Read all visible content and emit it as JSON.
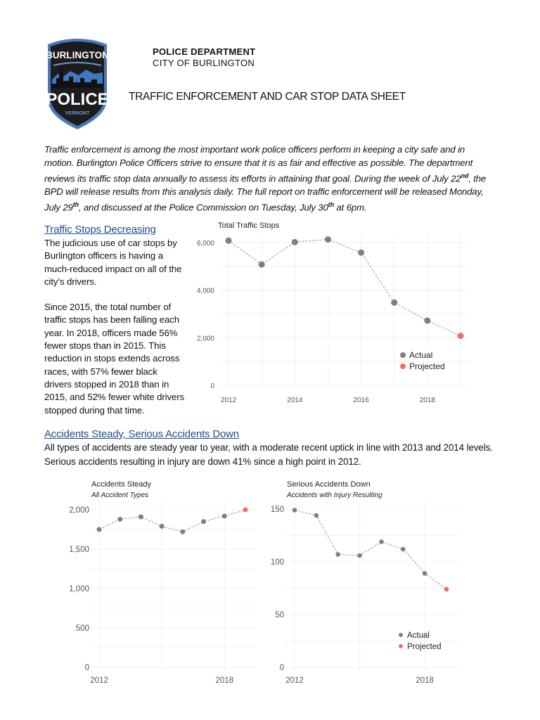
{
  "logo": {
    "top_text": "BURLINGTON",
    "main_text": "POLICE",
    "bottom_text": "VERMONT"
  },
  "header": {
    "department": "POLICE DEPARTMENT",
    "city": "CITY OF BURLINGTON",
    "title": "TRAFFIC ENFORCEMENT AND CAR STOP DATA SHEET"
  },
  "intro": {
    "p1": "Traffic enforcement is among the most important work police officers perform in keeping a city safe and in motion. Burlington Police Officers strive to ensure that it is as fair and effective as possible. The department reviews its traffic stop data annually to assess its efforts in attaining that goal. During the week of July 22",
    "sup1": "nd",
    "p2": ", the BPD will release results from this analysis daily. The full report on traffic enforcement will be released Monday, July 29",
    "sup2": "th",
    "p3": ", and discussed at the Police Commission on Tuesday, July 30",
    "sup3": "th",
    "p4": " at 6pm."
  },
  "section1": {
    "heading": "Traffic Stops Decreasing",
    "para1": "The judicious use of car stops by Burlington officers is having a much-reduced impact on all of the city’s drivers.",
    "para2": "Since 2015, the total number of traffic stops has been falling each year. In 2018, officers made 56% fewer stops than in 2015. This reduction in stops extends across races, with 57% fewer black drivers stopped in 2018 than in 2015, and 52% fewer white drivers stopped during that time."
  },
  "section2": {
    "heading": "Accidents Steady, Serious Accidents Down",
    "para": "All types of accidents are steady year to year, with a moderate recent uptick in line with 2013 and 2014 levels. Serious accidents resulting in injury are down 41% since a high point in 2012."
  },
  "colors": {
    "actual": "#7f7f7f",
    "projected": "#f26b6b",
    "heading": "#1f4e8c"
  },
  "chart_data": [
    {
      "type": "line",
      "title": "Total Traffic Stops",
      "x": [
        2012,
        2013,
        2014,
        2015,
        2016,
        2017,
        2018,
        2019
      ],
      "y": [
        6080,
        5080,
        6020,
        6130,
        5580,
        3480,
        2720,
        2080
      ],
      "status": [
        "Actual",
        "Actual",
        "Actual",
        "Actual",
        "Actual",
        "Actual",
        "Actual",
        "Projected"
      ],
      "xticks": [
        "2012",
        "2014",
        "2016",
        "2018"
      ],
      "yticks": [
        "0",
        "2,000",
        "4,000",
        "6,000"
      ],
      "ylim": [
        0,
        6300
      ],
      "legend": [
        "Actual",
        "Projected"
      ],
      "legend_position": "bottom-right",
      "grid": true,
      "line_style": "dashed"
    },
    {
      "type": "line",
      "title": "Accidents Steady",
      "subtitle": "All Accident Types",
      "x": [
        2012,
        2013,
        2014,
        2015,
        2016,
        2017,
        2018,
        2019
      ],
      "y": [
        1750,
        1880,
        1910,
        1790,
        1720,
        1850,
        1920,
        2000
      ],
      "status": [
        "Actual",
        "Actual",
        "Actual",
        "Actual",
        "Actual",
        "Actual",
        "Actual",
        "Projected"
      ],
      "xticks": [
        "2012",
        "2018"
      ],
      "yticks": [
        "0",
        "500",
        "1,000",
        "1,500",
        "2,000"
      ],
      "ylim": [
        0,
        2000
      ],
      "grid": true,
      "line_style": "dashed"
    },
    {
      "type": "line",
      "title": "Serious Accidents Down",
      "subtitle": "Accidents with Injury Resulting",
      "x": [
        2012,
        2013,
        2014,
        2015,
        2016,
        2017,
        2018,
        2019
      ],
      "y": [
        149,
        144,
        107,
        106,
        119,
        112,
        89,
        74
      ],
      "status": [
        "Actual",
        "Actual",
        "Actual",
        "Actual",
        "Actual",
        "Actual",
        "Actual",
        "Projected"
      ],
      "xticks": [
        "2012",
        "2018"
      ],
      "yticks": [
        "0",
        "50",
        "100",
        "150"
      ],
      "ylim": [
        0,
        150
      ],
      "legend": [
        "Actual",
        "Projected"
      ],
      "legend_position": "bottom-right",
      "grid": true,
      "line_style": "dashed"
    }
  ]
}
